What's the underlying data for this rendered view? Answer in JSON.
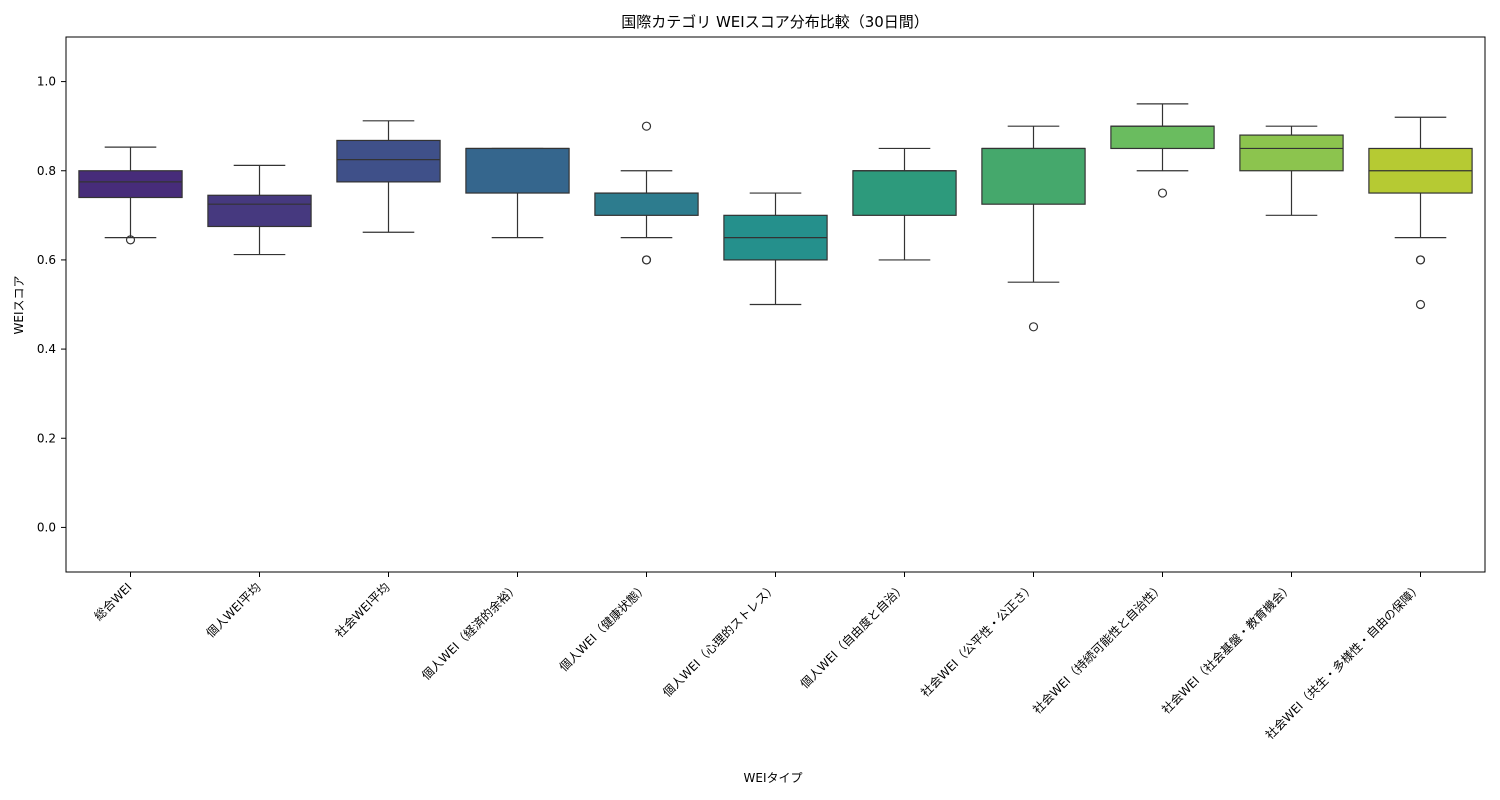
{
  "chart_data": {
    "type": "box",
    "title": "国際カテゴリ WEIスコア分布比較（30日間）",
    "xlabel": "WEIタイプ",
    "ylabel": "WEIスコア",
    "ylim": [
      -0.1,
      1.1
    ],
    "yticks": [
      "0.0",
      "0.2",
      "0.4",
      "0.6",
      "0.8",
      "1.0"
    ],
    "grid": false,
    "categories": [
      "総合WEI",
      "個人WEI平均",
      "社会WEI平均",
      "個人WEI（経済的余裕）",
      "個人WEI（健康状態）",
      "個人WEI（心理的ストレス）",
      "個人WEI（自由度と自治）",
      "社会WEI（公平性・公正さ）",
      "社会WEI（持続可能性と自治性）",
      "社会WEI（社会基盤・教育機会）",
      "社会WEI（共生・多様性・自由の保障）"
    ],
    "boxes": [
      {
        "whisker_low": 0.65,
        "q1": 0.74,
        "median": 0.775,
        "q3": 0.8,
        "whisker_high": 0.853,
        "outliers": [
          0.645
        ],
        "color": "#472c7a"
      },
      {
        "whisker_low": 0.612,
        "q1": 0.675,
        "median": 0.725,
        "q3": 0.745,
        "whisker_high": 0.812,
        "outliers": [],
        "color": "#46397f"
      },
      {
        "whisker_low": 0.662,
        "q1": 0.775,
        "median": 0.825,
        "q3": 0.868,
        "whisker_high": 0.912,
        "outliers": [],
        "color": "#3f5089"
      },
      {
        "whisker_low": 0.65,
        "q1": 0.75,
        "median": 0.85,
        "q3": 0.85,
        "whisker_high": 0.85,
        "outliers": [],
        "color": "#35668d"
      },
      {
        "whisker_low": 0.65,
        "q1": 0.7,
        "median": 0.75,
        "q3": 0.75,
        "whisker_high": 0.8,
        "outliers": [
          0.9,
          0.6,
          0.6
        ],
        "color": "#2d7c8e"
      },
      {
        "whisker_low": 0.5,
        "q1": 0.6,
        "median": 0.65,
        "q3": 0.7,
        "whisker_high": 0.75,
        "outliers": [],
        "color": "#25908c"
      },
      {
        "whisker_low": 0.6,
        "q1": 0.7,
        "median": 0.8,
        "q3": 0.8,
        "whisker_high": 0.85,
        "outliers": [],
        "color": "#2d9a7c"
      },
      {
        "whisker_low": 0.55,
        "q1": 0.725,
        "median": 0.85,
        "q3": 0.85,
        "whisker_high": 0.9,
        "outliers": [
          0.45
        ],
        "color": "#45a86c"
      },
      {
        "whisker_low": 0.8,
        "q1": 0.85,
        "median": 0.9,
        "q3": 0.9,
        "whisker_high": 0.95,
        "outliers": [
          0.75
        ],
        "color": "#6abc5f"
      },
      {
        "whisker_low": 0.7,
        "q1": 0.8,
        "median": 0.85,
        "q3": 0.88,
        "whisker_high": 0.9,
        "outliers": [],
        "color": "#8cc44e"
      },
      {
        "whisker_low": 0.65,
        "q1": 0.75,
        "median": 0.8,
        "q3": 0.85,
        "whisker_high": 0.92,
        "outliers": [
          0.6,
          0.6,
          0.5
        ],
        "color": "#b6ca33"
      }
    ]
  }
}
